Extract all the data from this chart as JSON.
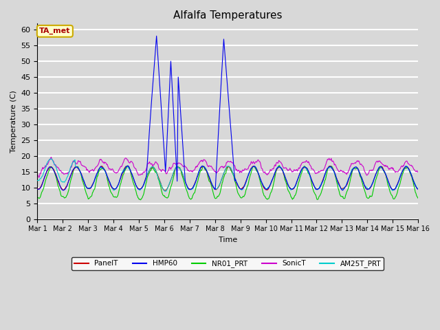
{
  "title": "Alfalfa Temperatures",
  "xlabel": "Time",
  "ylabel": "Temperature (C)",
  "ylim": [
    0,
    62
  ],
  "yticks": [
    0,
    5,
    10,
    15,
    20,
    25,
    30,
    35,
    40,
    45,
    50,
    55,
    60
  ],
  "background_color": "#d8d8d8",
  "plot_bg_color": "#d8d8d8",
  "grid_color": "#ffffff",
  "annotation_text": "TA_met",
  "annotation_bg": "#ffffcc",
  "annotation_border": "#ccaa00",
  "annotation_text_color": "#aa0000",
  "series": {
    "PanelT": {
      "color": "#cc0000",
      "lw": 0.8
    },
    "HMP60": {
      "color": "#0000ee",
      "lw": 0.8
    },
    "NR01_PRT": {
      "color": "#00cc00",
      "lw": 0.8
    },
    "SonicT": {
      "color": "#cc00cc",
      "lw": 0.8
    },
    "AM25T_PRT": {
      "color": "#00cccc",
      "lw": 0.8
    }
  },
  "days": 15,
  "n_points": 720
}
